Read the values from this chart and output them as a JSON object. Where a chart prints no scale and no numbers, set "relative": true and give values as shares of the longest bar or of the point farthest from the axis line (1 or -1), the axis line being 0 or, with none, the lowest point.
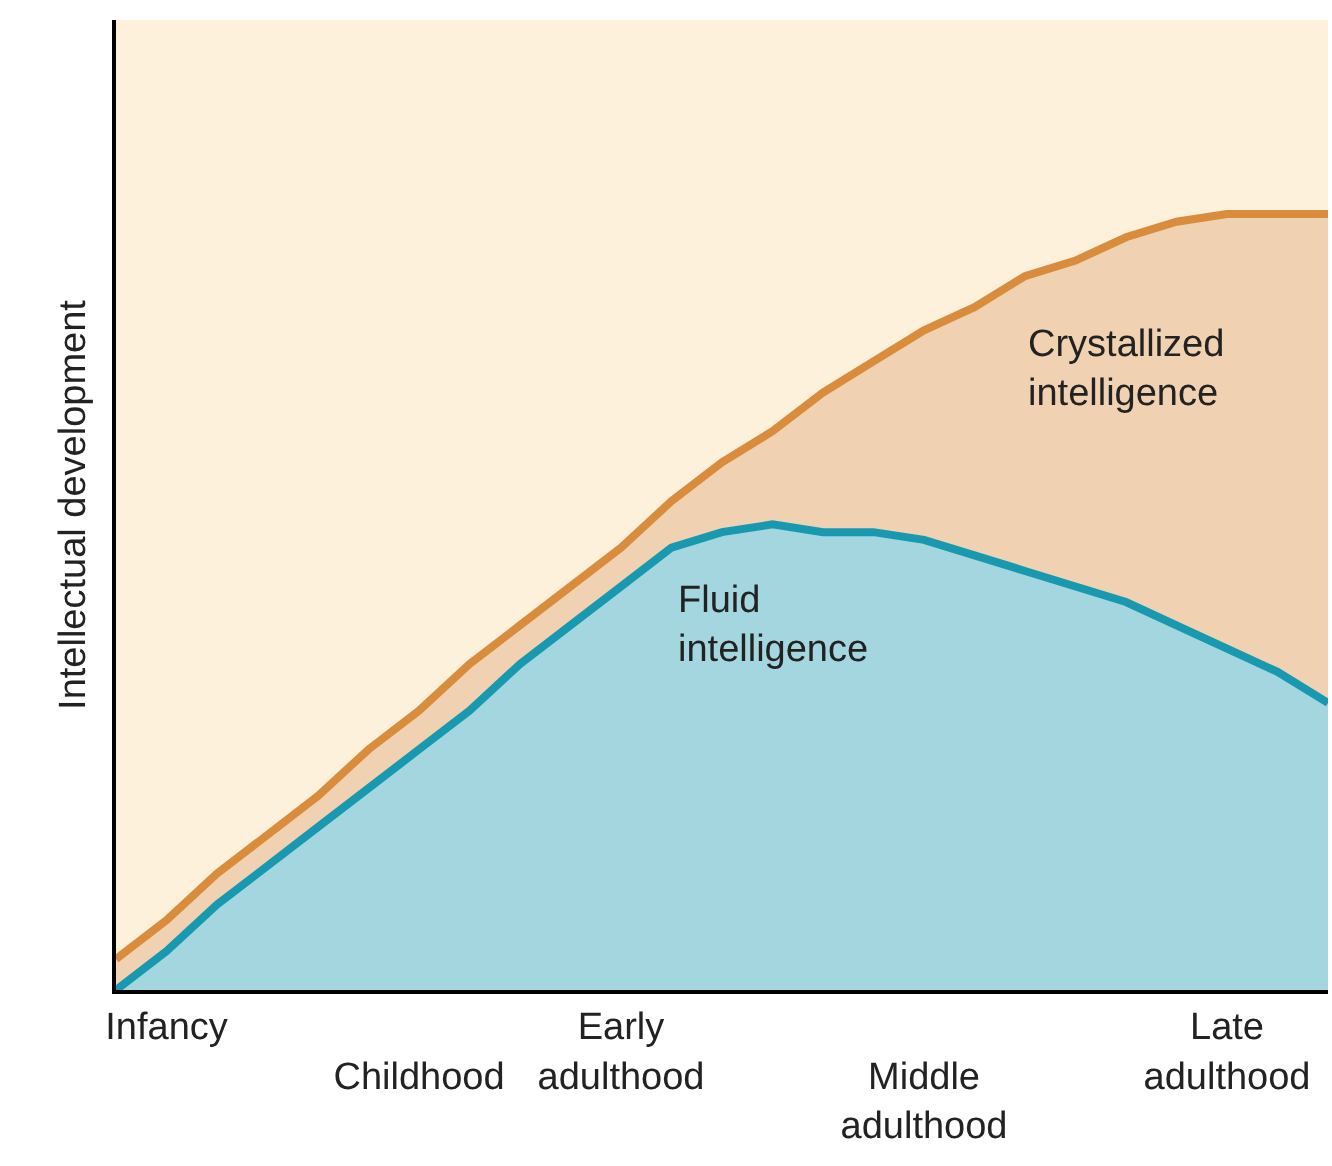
{
  "chart_data": {
    "type": "area",
    "relative": true,
    "ylabel": "Intellectual development",
    "categories": [
      null,
      "Infancy",
      null,
      null,
      null,
      null,
      "Childhood",
      null,
      null,
      null,
      "Early adulthood",
      null,
      null,
      null,
      null,
      null,
      "Middle adulthood",
      null,
      null,
      null,
      null,
      null,
      "Late adulthood",
      null,
      null
    ],
    "series": [
      {
        "name": "Crystallized intelligence",
        "color": "#d98c3c",
        "values": [
          0.04,
          0.09,
          0.15,
          0.2,
          0.25,
          0.31,
          0.36,
          0.42,
          0.47,
          0.52,
          0.57,
          0.63,
          0.68,
          0.72,
          0.77,
          0.81,
          0.85,
          0.88,
          0.92,
          0.94,
          0.97,
          0.99,
          1.0,
          1.0,
          1.0
        ]
      },
      {
        "name": "Fluid intelligence",
        "color": "#1899b0",
        "values": [
          0,
          0.05,
          0.11,
          0.16,
          0.21,
          0.26,
          0.31,
          0.36,
          0.42,
          0.47,
          0.52,
          0.57,
          0.59,
          0.6,
          0.59,
          0.59,
          0.58,
          0.56,
          0.54,
          0.52,
          0.5,
          0.47,
          0.44,
          0.41,
          0.37
        ]
      }
    ],
    "legend": false,
    "grid": false
  }
}
